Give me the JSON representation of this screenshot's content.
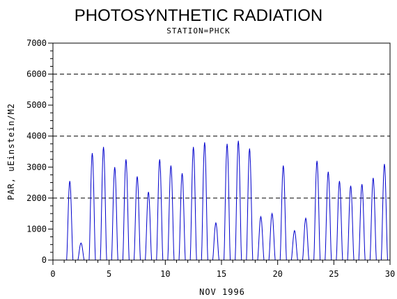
{
  "chart_data": {
    "type": "line",
    "title": "PHOTOSYNTHETIC RADIATION",
    "subtitle": "STATION=PHCK",
    "xlabel": "NOV 1996",
    "ylabel": "PAR, uEinstein/M2",
    "xlim": [
      0,
      30
    ],
    "ylim": [
      0,
      7000
    ],
    "x_ticks": [
      0,
      5,
      10,
      15,
      20,
      25,
      30
    ],
    "y_ticks": [
      0,
      1000,
      2000,
      3000,
      4000,
      5000,
      6000,
      7000
    ],
    "reference_lines": [
      2000,
      4000,
      6000
    ],
    "line_color": "#0000cc",
    "grid": false,
    "series": [
      {
        "daily_peaks": [
          {
            "day": 1.5,
            "peak": 2550
          },
          {
            "day": 2.5,
            "peak": 550
          },
          {
            "day": 3.5,
            "peak": 3450
          },
          {
            "day": 4.5,
            "peak": 3650
          },
          {
            "day": 5.5,
            "peak": 3000
          },
          {
            "day": 6.5,
            "peak": 3250
          },
          {
            "day": 7.5,
            "peak": 2700
          },
          {
            "day": 8.5,
            "peak": 2200
          },
          {
            "day": 9.5,
            "peak": 3250
          },
          {
            "day": 10.5,
            "peak": 3050
          },
          {
            "day": 11.5,
            "peak": 2800
          },
          {
            "day": 12.5,
            "peak": 3650
          },
          {
            "day": 13.5,
            "peak": 3800
          },
          {
            "day": 14.5,
            "peak": 1200
          },
          {
            "day": 15.5,
            "peak": 3750
          },
          {
            "day": 16.5,
            "peak": 3850
          },
          {
            "day": 17.5,
            "peak": 3600
          },
          {
            "day": 18.5,
            "peak": 1400
          },
          {
            "day": 19.5,
            "peak": 1500
          },
          {
            "day": 20.5,
            "peak": 3050
          },
          {
            "day": 21.5,
            "peak": 950
          },
          {
            "day": 22.5,
            "peak": 1350
          },
          {
            "day": 23.5,
            "peak": 3200
          },
          {
            "day": 24.5,
            "peak": 2850
          },
          {
            "day": 25.5,
            "peak": 2550
          },
          {
            "day": 26.5,
            "peak": 2400
          },
          {
            "day": 27.5,
            "peak": 2450
          },
          {
            "day": 28.5,
            "peak": 2650
          },
          {
            "day": 29.5,
            "peak": 3100
          }
        ]
      }
    ]
  }
}
